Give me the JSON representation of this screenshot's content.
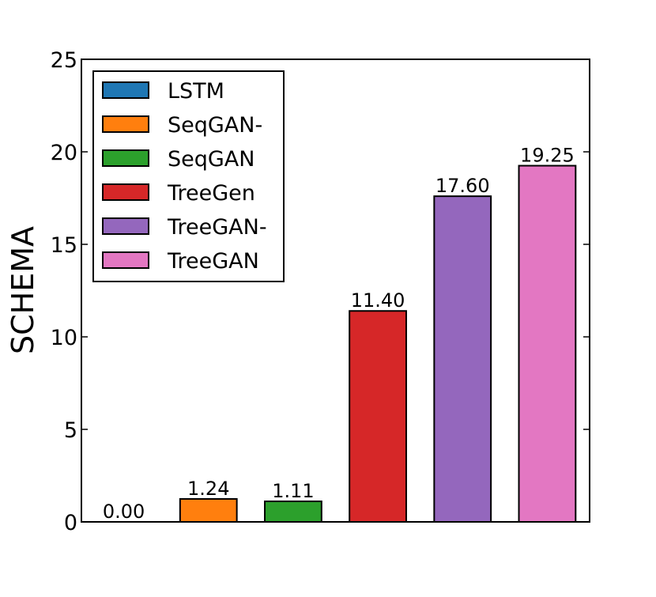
{
  "chart_data": {
    "type": "bar",
    "title": "",
    "xlabel": "",
    "ylabel": "SCHEMA",
    "ylim": [
      0,
      25
    ],
    "yticks": [
      0,
      5,
      10,
      15,
      20,
      25
    ],
    "grid": false,
    "legend_position": "top-left",
    "categories": [
      "LSTM",
      "SeqGAN-",
      "SeqGAN",
      "TreeGen",
      "TreeGAN-",
      "TreeGAN"
    ],
    "values": [
      0.0,
      1.24,
      1.11,
      11.4,
      17.6,
      19.25
    ],
    "value_labels": [
      "0.00",
      "1.24",
      "1.11",
      "11.40",
      "17.60",
      "19.25"
    ],
    "colors": [
      "#1f77b4",
      "#ff7f0e",
      "#2ca02c",
      "#d62728",
      "#9467bd",
      "#e377c2"
    ],
    "legend": [
      "LSTM",
      "SeqGAN-",
      "SeqGAN",
      "TreeGen",
      "TreeGAN-",
      "TreeGAN"
    ]
  }
}
